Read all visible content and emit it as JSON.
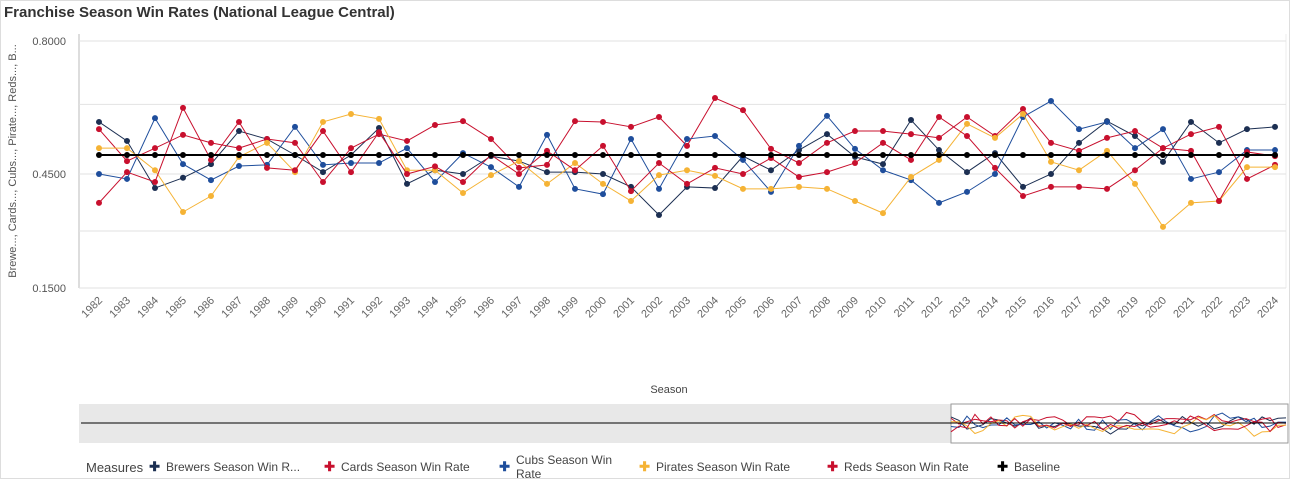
{
  "title": "Franchise Season Win Rates (National League Central)",
  "chart_data": {
    "type": "line",
    "title": "Franchise Season Win Rates (National League Central)",
    "xlabel": "Season",
    "ylabel": "Brewe..., Cards..., Cubs..., Pirate..., Reds..., B...",
    "ylim": [
      0.15,
      0.8
    ],
    "yticks": [
      "0.8000",
      "0.4500",
      "0.1500"
    ],
    "grid": true,
    "legend_placement": "bottom",
    "legend_title": "Measures",
    "x": [
      1982,
      1983,
      1984,
      1985,
      1986,
      1987,
      1988,
      1989,
      1990,
      1991,
      1992,
      1993,
      1994,
      1995,
      1996,
      1997,
      1998,
      1999,
      2000,
      2001,
      2002,
      2003,
      2004,
      2005,
      2006,
      2007,
      2008,
      2009,
      2010,
      2011,
      2012,
      2013,
      2014,
      2015,
      2016,
      2017,
      2018,
      2019,
      2020,
      2021,
      2022,
      2023,
      2024
    ],
    "series": [
      {
        "name": "Brewers Season Win R...",
        "color": "#1c2f52",
        "values": [
          0.587,
          0.537,
          0.413,
          0.44,
          0.476,
          0.563,
          0.542,
          0.5,
          0.455,
          0.5,
          0.571,
          0.424,
          0.46,
          0.45,
          0.497,
          0.484,
          0.455,
          0.455,
          0.45,
          0.416,
          0.342,
          0.416,
          0.413,
          0.497,
          0.46,
          0.513,
          0.555,
          0.495,
          0.476,
          0.592,
          0.513,
          0.455,
          0.505,
          0.416,
          0.45,
          0.532,
          0.589,
          0.55,
          0.482,
          0.587,
          0.532,
          0.568,
          0.574
        ]
      },
      {
        "name": "Cards Season Win Rate",
        "color": "#c8102e",
        "values": [
          0.568,
          0.484,
          0.518,
          0.553,
          0.532,
          0.518,
          0.542,
          0.532,
          0.429,
          0.518,
          0.555,
          0.537,
          0.579,
          0.589,
          0.542,
          0.466,
          0.474,
          0.589,
          0.587,
          0.574,
          0.6,
          0.524,
          0.65,
          0.618,
          0.516,
          0.479,
          0.532,
          0.563,
          0.563,
          0.555,
          0.545,
          0.6,
          0.55,
          0.621,
          0.532,
          0.511,
          0.545,
          0.563,
          0.518,
          0.555,
          0.574,
          0.437,
          0.474
        ]
      },
      {
        "name": "Cubs Season Win Rate",
        "color": "#1f4e9c",
        "values": [
          0.45,
          0.437,
          0.597,
          0.476,
          0.434,
          0.471,
          0.474,
          0.574,
          0.474,
          0.479,
          0.479,
          0.518,
          0.429,
          0.505,
          0.468,
          0.416,
          0.553,
          0.411,
          0.397,
          0.542,
          0.411,
          0.542,
          0.55,
          0.487,
          0.403,
          0.524,
          0.603,
          0.516,
          0.46,
          0.434,
          0.374,
          0.403,
          0.45,
          0.6,
          0.642,
          0.568,
          0.587,
          0.518,
          0.568,
          0.437,
          0.455,
          0.513,
          0.513
        ]
      },
      {
        "name": "Pirates Season Win Rate",
        "color": "#f5b335",
        "values": [
          0.518,
          0.518,
          0.46,
          0.35,
          0.392,
          0.495,
          0.532,
          0.455,
          0.587,
          0.608,
          0.595,
          0.46,
          0.46,
          0.4,
          0.447,
          0.484,
          0.424,
          0.479,
          0.424,
          0.379,
          0.447,
          0.46,
          0.445,
          0.411,
          0.411,
          0.416,
          0.411,
          0.379,
          0.347,
          0.442,
          0.487,
          0.582,
          0.545,
          0.608,
          0.482,
          0.46,
          0.511,
          0.424,
          0.311,
          0.374,
          0.379,
          0.468,
          0.468
        ]
      },
      {
        "name": "Reds Season Win Rate",
        "color": "#c8102e",
        "values": [
          0.374,
          0.455,
          0.429,
          0.624,
          0.487,
          0.587,
          0.466,
          0.46,
          0.563,
          0.455,
          0.56,
          0.45,
          0.47,
          0.429,
          0.5,
          0.45,
          0.511,
          0.46,
          0.524,
          0.405,
          0.479,
          0.424,
          0.466,
          0.45,
          0.492,
          0.442,
          0.455,
          0.479,
          0.532,
          0.487,
          0.6,
          0.55,
          0.466,
          0.392,
          0.416,
          0.416,
          0.411,
          0.46,
          0.518,
          0.511,
          0.379,
          0.508,
          0.497
        ]
      },
      {
        "name": "Baseline",
        "color": "#000000",
        "values": [
          0.5,
          0.5,
          0.5,
          0.5,
          0.5,
          0.5,
          0.5,
          0.5,
          0.5,
          0.5,
          0.5,
          0.5,
          0.5,
          0.5,
          0.5,
          0.5,
          0.5,
          0.5,
          0.5,
          0.5,
          0.5,
          0.5,
          0.5,
          0.5,
          0.5,
          0.5,
          0.5,
          0.5,
          0.5,
          0.5,
          0.5,
          0.5,
          0.5,
          0.5,
          0.5,
          0.5,
          0.5,
          0.5,
          0.5,
          0.5,
          0.5,
          0.5,
          0.5
        ]
      }
    ]
  }
}
